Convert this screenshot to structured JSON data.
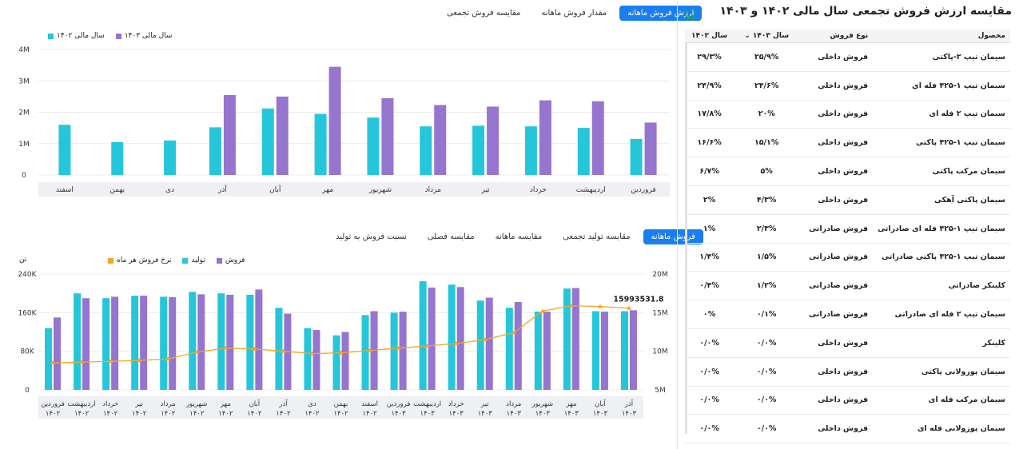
{
  "colors": {
    "cyan": "#26c6da",
    "purple": "#9575cd",
    "orange": "#f5a623",
    "accent": "#1a7ef0"
  },
  "top": {
    "tabs": [
      {
        "label": "ارزش فروش ماهانه",
        "active": true
      },
      {
        "label": "مقدار فروش ماهانه",
        "active": false
      },
      {
        "label": "مقایسه فروش تجمعی",
        "active": false
      }
    ],
    "legend": [
      {
        "label": "سال مالی ۱۴۰۳",
        "color": "#9575cd"
      },
      {
        "label": "سال مالی ۱۴۰۲",
        "color": "#26c6da"
      }
    ]
  },
  "bottom": {
    "tabs": [
      {
        "label": "فروش ماهانه",
        "active": true
      },
      {
        "label": "مقایسه تولید تجمعی",
        "active": false
      },
      {
        "label": "مقایسه ماهانه",
        "active": false
      },
      {
        "label": "مقایسه فصلی",
        "active": false
      },
      {
        "label": "نسبت فروش به تولید",
        "active": false
      }
    ],
    "legend": [
      {
        "label": "فروش",
        "color": "#9575cd"
      },
      {
        "label": "تولید",
        "color": "#26c6da"
      },
      {
        "label": "نرخ فروش هر ماه",
        "color": "#f5a623"
      }
    ]
  },
  "chart_data": [
    {
      "type": "bar",
      "categories": [
        "فروردین",
        "اردیبهشت",
        "خرداد",
        "تیر",
        "مرداد",
        "شهریور",
        "مهر",
        "آبان",
        "آذر",
        "دی",
        "بهمن",
        "اسفند"
      ],
      "series": [
        {
          "name": "سال مالی ۱۴۰۲",
          "values": [
            1.15,
            1.5,
            1.55,
            1.57,
            1.55,
            1.83,
            1.95,
            2.12,
            1.52,
            1.1,
            1.05,
            1.6
          ]
        },
        {
          "name": "سال مالی ۱۴۰۳",
          "values": [
            1.67,
            2.35,
            2.38,
            2.18,
            2.23,
            2.45,
            3.45,
            2.5,
            2.55,
            null,
            null,
            null
          ]
        }
      ],
      "yticks": [
        "0",
        "1M",
        "2M",
        "3M",
        "4M"
      ],
      "ylim": [
        0,
        4
      ]
    },
    {
      "type": "bar",
      "categories": [
        "فروردین ۱۴۰۲",
        "اردیبهشت ۱۴۰۲",
        "خرداد ۱۴۰۲",
        "تیر ۱۴۰۲",
        "مرداد ۱۴۰۲",
        "شهریور ۱۴۰۲",
        "مهر ۱۴۰۲",
        "آبان ۱۴۰۲",
        "آذر ۱۴۰۲",
        "دی ۱۴۰۲",
        "بهمن ۱۴۰۲",
        "اسفند ۱۴۰۲",
        "فروردین ۱۴۰۳",
        "اردیبهشت ۱۴۰۳",
        "خرداد ۱۴۰۳",
        "تیر ۱۴۰۳",
        "مرداد ۱۴۰۳",
        "شهریور ۱۴۰۳",
        "مهر ۱۴۰۳",
        "آبان ۱۴۰۳",
        "آذر ۱۴۰۳"
      ],
      "series": [
        {
          "name": "تولید",
          "values": [
            128000,
            200000,
            190000,
            195000,
            193000,
            203000,
            200000,
            197000,
            170000,
            128000,
            113000,
            155000,
            160000,
            225000,
            218000,
            185000,
            170000,
            162000,
            210000,
            163000,
            163000
          ]
        },
        {
          "name": "فروش",
          "values": [
            150000,
            190000,
            193000,
            195000,
            192000,
            198000,
            197000,
            208000,
            158000,
            124000,
            120000,
            163000,
            162000,
            212000,
            213000,
            191000,
            182000,
            162000,
            211000,
            162000,
            165000
          ]
        }
      ],
      "line": {
        "name": "نرخ فروش هر ماه",
        "values": [
          8.5,
          8.6,
          8.7,
          8.8,
          9.0,
          9.9,
          10.4,
          10.3,
          10.0,
          9.7,
          9.8,
          10.1,
          10.4,
          10.7,
          11.0,
          11.5,
          12.4,
          15.2,
          15.9,
          15.8,
          15.59
        ]
      },
      "y_left_ticks": [
        "0",
        "80K",
        "160K",
        "240K"
      ],
      "y_left_unit": "تن",
      "y_left_lim": [
        0,
        240000
      ],
      "y_right_ticks": [
        "5M",
        "10M",
        "15M",
        "20M"
      ],
      "y_right_lim": [
        5,
        20
      ],
      "annotation": "15993531.8"
    }
  ],
  "table": {
    "title": "مقایسه ارزش فروش تجمعی سال مالی ۱۴۰۲ و ۱۴۰۳",
    "headers": [
      "محصول",
      "نوع فروش",
      "سال ۱۴۰۳",
      "سال ۱۴۰۲"
    ],
    "rows": [
      [
        "سیمان تیپ ۲-پاکتی",
        "فروش داخلی",
        "۲۵/۹%",
        "۲۹/۳%"
      ],
      [
        "سیمان تیپ ۱-۴۲۵ فله ای",
        "فروش داخلی",
        "۲۴/۶%",
        "۲۴/۹%"
      ],
      [
        "سیمان تیپ ۲ فله ای",
        "فروش داخلی",
        "۲۰%",
        "۱۷/۸%"
      ],
      [
        "سیمان تیپ ۱-۴۲۵ پاکتی",
        "فروش داخلی",
        "۱۵/۱%",
        "۱۶/۶%"
      ],
      [
        "سیمان مرکب پاکتی",
        "فروش داخلی",
        "۵%",
        "۶/۷%"
      ],
      [
        "سیمان پاکتی آهکی",
        "فروش داخلی",
        "۴/۳%",
        "۲%"
      ],
      [
        "سیمان تیپ ۱-۴۲۵ فله ای صادراتی",
        "فروش صادراتی",
        "۲/۳%",
        "۱%"
      ],
      [
        "سیمان تیپ ۱-۴۲۵ پاکتی صادراتی",
        "فروش صادراتی",
        "۱/۵%",
        "۱/۴%"
      ],
      [
        "کلینکر صادراتی",
        "فروش صادراتی",
        "۱/۲%",
        "۰/۴%"
      ],
      [
        "سیمان تیپ ۲ فله ای صادراتی",
        "فروش صادراتی",
        "۰/۱%",
        "۰%"
      ],
      [
        "کلینکر",
        "فروش داخلی",
        "۰/۰%",
        "۰/۰%"
      ],
      [
        "سیمان پوزولانی پاکتی",
        "فروش داخلی",
        "۰/۰%",
        "۰/۰%"
      ],
      [
        "سیمان مرکب فله ای",
        "فروش داخلی",
        "۰/۰%",
        "۰/۰%"
      ],
      [
        "سیمان پوزولانی فله ای",
        "فروش داخلی",
        "۰/۰%",
        "۰/۰%"
      ]
    ]
  }
}
